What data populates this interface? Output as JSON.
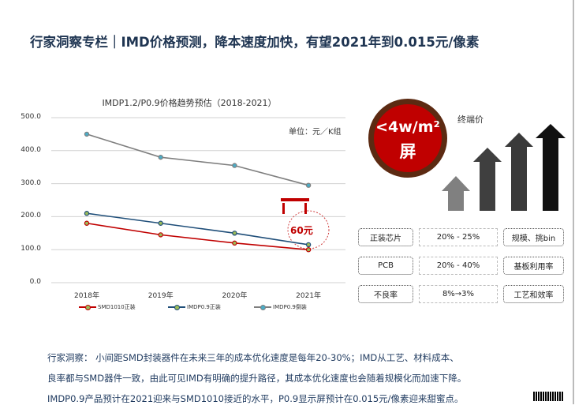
{
  "title": "行家洞察专栏｜IMD价格预测，降本速度加快，有望2021年到0.015元/像素",
  "chart_data": {
    "type": "line",
    "title": "IMDP1.2/P0.9价格趋势预估（2018-2021）",
    "unit": "单位：元／K组",
    "categories": [
      "2018年",
      "2019年",
      "2020年",
      "2021年"
    ],
    "yticks": [
      "500.0",
      "400.0",
      "300.0",
      "200.0",
      "100.0",
      "0.0"
    ],
    "ylim": [
      0,
      500
    ],
    "grid": true,
    "legend": "bottom",
    "series": [
      {
        "name": "SMD1010正装",
        "values": [
          180,
          145,
          120,
          100
        ],
        "color": "#c00000"
      },
      {
        "name": "IMDP0.9正装",
        "values": [
          210,
          180,
          150,
          115
        ],
        "color": "#1f4e79"
      },
      {
        "name": "IMDP0.9倒装",
        "values": [
          450,
          380,
          355,
          295
        ],
        "color": "#7f7f7f"
      }
    ],
    "annotation": "60元"
  },
  "panel": {
    "circle_line1": "<4w/m²",
    "circle_line2": "屏",
    "end_price": "终端价",
    "rows": [
      {
        "item": "正装芯片",
        "range": "20% - 25%",
        "driver": "规模、挑bin"
      },
      {
        "item": "PCB",
        "range": "20% - 40%",
        "driver": "基板利用率"
      },
      {
        "item": "不良率",
        "range": "8%→3%",
        "driver": "工艺和效率"
      }
    ]
  },
  "insight": [
    "行家洞察： 小间距SMD封装器件在未来三年的成本优化速度是每年20-30%；IMD从工艺、材料成本、",
    "良率都与SMD器件一致，由此可见IMD有明确的提升路径，其成本优化速度也会随着规模化而加速下降。",
    "IMDP0.9产品预计在2021迎来与SMD1010接近的水平，P0.9显示屏预计在0.015元/像素迎来甜蜜点。"
  ]
}
